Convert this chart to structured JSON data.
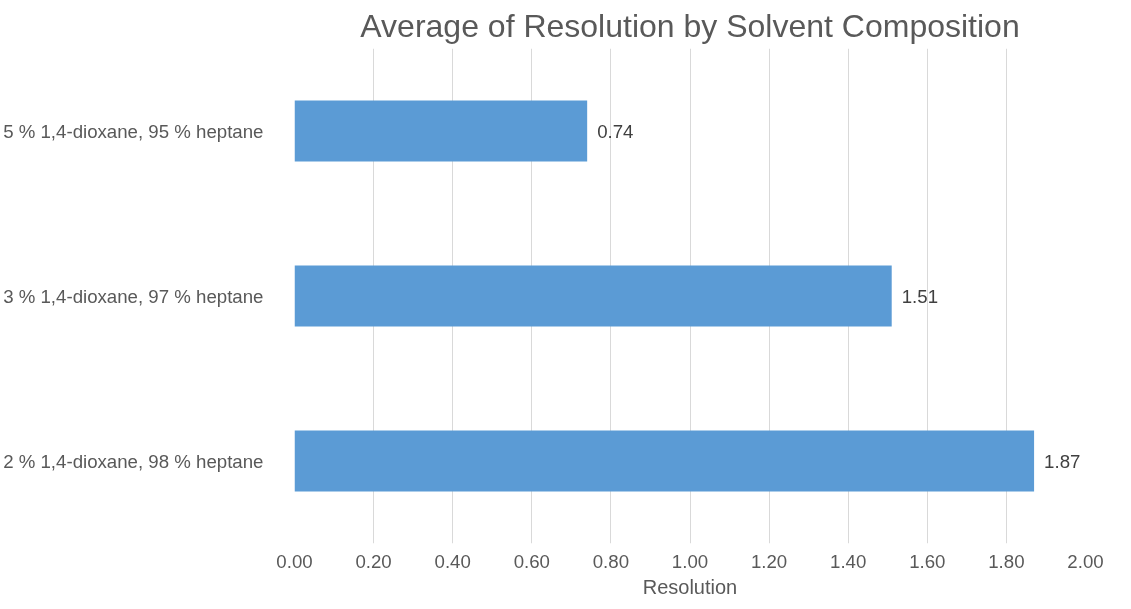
{
  "chart_data": {
    "type": "bar",
    "orientation": "horizontal",
    "title": "Average of Resolution by Solvent Composition",
    "xlabel": "Resolution",
    "categories": [
      "5 % 1,4-dioxane, 95 % heptane",
      "3 % 1,4-dioxane, 97 % heptane",
      "2 % 1,4-dioxane, 98 % heptane"
    ],
    "values": [
      0.74,
      1.51,
      1.87
    ],
    "color": "#5b9bd5",
    "xlim": [
      0,
      2
    ],
    "xticks": [
      {
        "value": 0,
        "label": "0.00"
      },
      {
        "value": 0.2,
        "label": "0.20"
      },
      {
        "value": 0.4,
        "label": "0.40"
      },
      {
        "value": 0.6,
        "label": "0.60"
      },
      {
        "value": 0.8,
        "label": "0.80"
      },
      {
        "value": 1.0,
        "label": "1.00"
      },
      {
        "value": 1.2,
        "label": "1.20"
      },
      {
        "value": 1.4,
        "label": "1.40"
      },
      {
        "value": 1.6,
        "label": "1.60"
      },
      {
        "value": 1.8,
        "label": "1.80"
      },
      {
        "value": 2.0,
        "label": "2.00"
      }
    ],
    "grid": "x",
    "data_labels": true
  }
}
